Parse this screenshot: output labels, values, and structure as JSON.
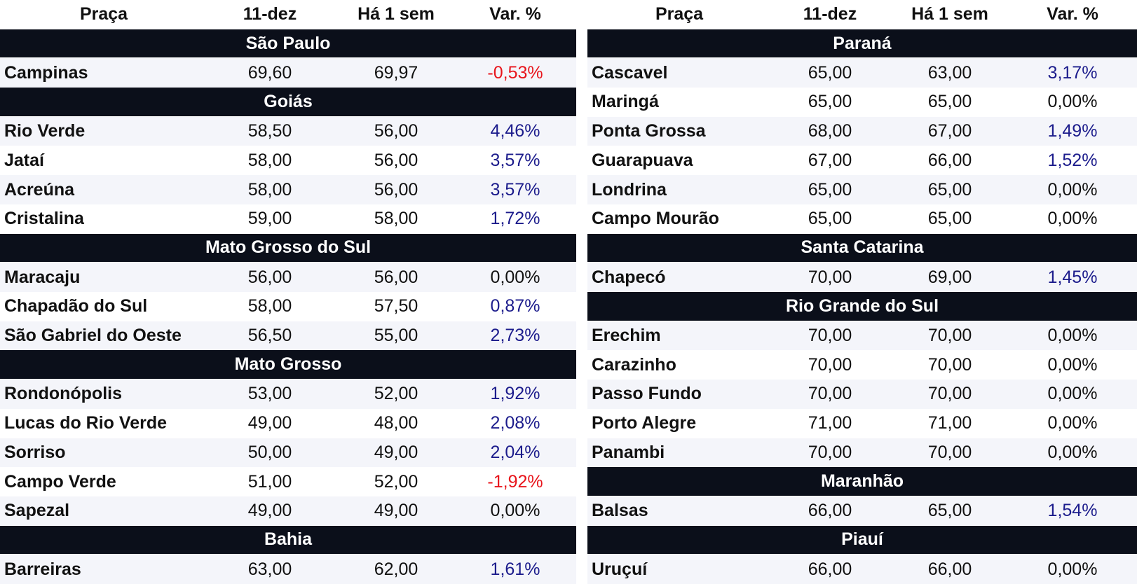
{
  "tables": [
    {
      "header": [
        "Praça",
        "11-dez",
        "Há 1 sem",
        "Var. %"
      ],
      "groups": [
        {
          "title": "São Paulo",
          "rows": [
            [
              "Campinas",
              "69,60",
              "69,97",
              "-0,53%"
            ]
          ]
        },
        {
          "title": "Goiás",
          "rows": [
            [
              "Rio Verde",
              "58,50",
              "56,00",
              "4,46%"
            ],
            [
              "Jataí",
              "58,00",
              "56,00",
              "3,57%"
            ],
            [
              "Acreúna",
              "58,00",
              "56,00",
              "3,57%"
            ],
            [
              "Cristalina",
              "59,00",
              "58,00",
              "1,72%"
            ]
          ]
        },
        {
          "title": "Mato Grosso do Sul",
          "rows": [
            [
              "Maracaju",
              "56,00",
              "56,00",
              "0,00%"
            ],
            [
              "Chapadão do Sul",
              "58,00",
              "57,50",
              "0,87%"
            ],
            [
              "São Gabriel do Oeste",
              "56,50",
              "55,00",
              "2,73%"
            ]
          ]
        },
        {
          "title": "Mato Grosso",
          "rows": [
            [
              "Rondonópolis",
              "53,00",
              "52,00",
              "1,92%"
            ],
            [
              "Lucas do Rio Verde",
              "49,00",
              "48,00",
              "2,08%"
            ],
            [
              "Sorriso",
              "50,00",
              "49,00",
              "2,04%"
            ],
            [
              "Campo Verde",
              "51,00",
              "52,00",
              "-1,92%"
            ],
            [
              "Sapezal",
              "49,00",
              "49,00",
              "0,00%"
            ]
          ]
        },
        {
          "title": "Bahia",
          "rows": [
            [
              "Barreiras",
              "63,00",
              "62,00",
              "1,61%"
            ]
          ]
        }
      ]
    },
    {
      "header": [
        "Praça",
        "11-dez",
        "Há 1 sem",
        "Var. %"
      ],
      "groups": [
        {
          "title": "Paraná",
          "rows": [
            [
              "Cascavel",
              "65,00",
              "63,00",
              "3,17%"
            ],
            [
              "Maringá",
              "65,00",
              "65,00",
              "0,00%"
            ],
            [
              "Ponta Grossa",
              "68,00",
              "67,00",
              "1,49%"
            ],
            [
              "Guarapuava",
              "67,00",
              "66,00",
              "1,52%"
            ],
            [
              "Londrina",
              "65,00",
              "65,00",
              "0,00%"
            ],
            [
              "Campo Mourão",
              "65,00",
              "65,00",
              "0,00%"
            ]
          ]
        },
        {
          "title": "Santa Catarina",
          "rows": [
            [
              "Chapecó",
              "70,00",
              "69,00",
              "1,45%"
            ]
          ]
        },
        {
          "title": "Rio Grande do Sul",
          "rows": [
            [
              "Erechim",
              "70,00",
              "70,00",
              "0,00%"
            ],
            [
              "Carazinho",
              "70,00",
              "70,00",
              "0,00%"
            ],
            [
              "Passo Fundo",
              "70,00",
              "70,00",
              "0,00%"
            ],
            [
              "Porto Alegre",
              "71,00",
              "71,00",
              "0,00%"
            ],
            [
              "Panambi",
              "70,00",
              "70,00",
              "0,00%"
            ]
          ]
        },
        {
          "title": "Maranhão",
          "rows": [
            [
              "Balsas",
              "66,00",
              "65,00",
              "1,54%"
            ]
          ]
        },
        {
          "title": "Piauí",
          "rows": [
            [
              "Uruçuí",
              "66,00",
              "66,00",
              "0,00%"
            ]
          ]
        }
      ]
    }
  ]
}
